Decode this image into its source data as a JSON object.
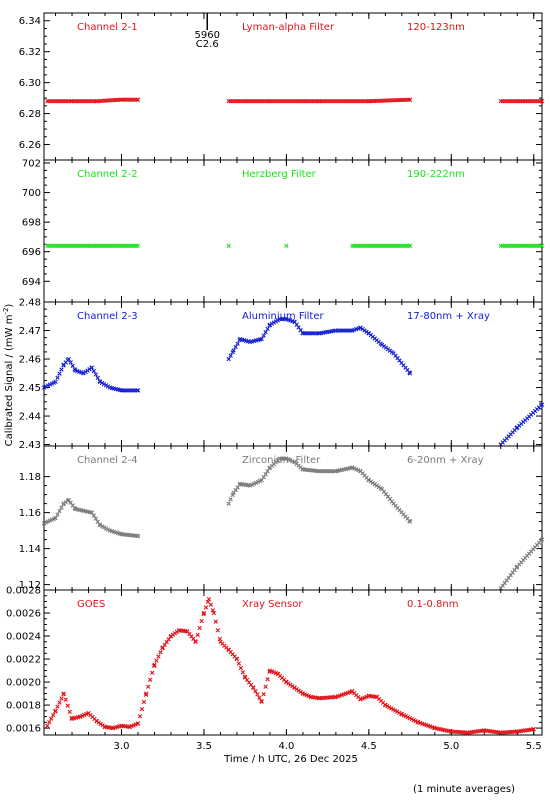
{
  "figure": {
    "ylabel": "Calibrated Signal / (mW m",
    "ylabel_sup": "-2",
    "ylabel_end": ")",
    "xlabel": "Time / h UTC, 26 Dec 2025",
    "footnote": "(1 minute averages)",
    "event_marker": {
      "x": 3.52,
      "labels": [
        "5960",
        "C2.6"
      ]
    }
  },
  "chart_data": [
    {
      "type": "scatter",
      "panel": "channel-2-1",
      "labels": [
        "Channel 2-1",
        "Lyman-alpha Filter",
        "120-123nm"
      ],
      "color": "#e0141a",
      "xlim": [
        2.53,
        5.55
      ],
      "ylim": [
        6.25,
        6.345
      ],
      "yticks": [
        6.26,
        6.28,
        6.3,
        6.32,
        6.34
      ],
      "ytick_labels": [
        "6.26",
        "6.28",
        "6.30",
        "6.32",
        "6.34"
      ],
      "x": [
        2.55,
        2.7,
        2.85,
        3.0,
        3.1,
        3.65,
        3.9,
        4.2,
        4.5,
        4.75,
        5.3,
        5.45,
        5.55
      ],
      "y": [
        6.288,
        6.288,
        6.288,
        6.289,
        6.289,
        6.288,
        6.288,
        6.288,
        6.288,
        6.289,
        6.288,
        6.288,
        6.288
      ]
    },
    {
      "type": "scatter",
      "panel": "channel-2-2",
      "labels": [
        "Channel 2-2",
        "Herzberg Filter",
        "190-222nm"
      ],
      "color": "#1ee01e",
      "xlim": [
        2.53,
        5.55
      ],
      "ylim": [
        692.6,
        702.2
      ],
      "yticks": [
        694,
        696,
        698,
        700,
        702
      ],
      "ytick_labels": [
        "694",
        "696",
        "698",
        "700",
        "702"
      ],
      "x": [
        2.55,
        2.8,
        3.1,
        3.65,
        4.0,
        4.4,
        4.75,
        5.3,
        5.45,
        5.55
      ],
      "y": [
        696.4,
        696.4,
        696.4,
        696.4,
        696.4,
        696.4,
        696.4,
        696.4,
        696.4,
        696.4
      ]
    },
    {
      "type": "scatter",
      "panel": "channel-2-3",
      "labels": [
        "Channel 2-3",
        "Aluminium Filter",
        "17-80nm + Xray"
      ],
      "color": "#1420d2",
      "xlim": [
        2.53,
        5.55
      ],
      "ylim": [
        2.4295,
        2.48
      ],
      "yticks": [
        2.43,
        2.44,
        2.45,
        2.46,
        2.47,
        2.48
      ],
      "ytick_labels": [
        "2.43",
        "2.44",
        "2.45",
        "2.46",
        "2.47",
        "2.48"
      ],
      "x": [
        2.53,
        2.6,
        2.65,
        2.68,
        2.72,
        2.77,
        2.82,
        2.87,
        2.93,
        3.0,
        3.1,
        3.65,
        3.68,
        3.72,
        3.78,
        3.85,
        3.9,
        3.96,
        4.0,
        4.05,
        4.1,
        4.2,
        4.3,
        4.4,
        4.45,
        4.5,
        4.58,
        4.65,
        4.75,
        5.3,
        5.4,
        5.55
      ],
      "y": [
        2.45,
        2.452,
        2.458,
        2.46,
        2.456,
        2.455,
        2.457,
        2.452,
        2.45,
        2.449,
        2.449,
        2.46,
        2.463,
        2.467,
        2.466,
        2.467,
        2.472,
        2.474,
        2.474,
        2.473,
        2.469,
        2.469,
        2.47,
        2.47,
        2.471,
        2.469,
        2.465,
        2.462,
        2.455,
        2.43,
        2.436,
        2.444
      ]
    },
    {
      "type": "scatter",
      "panel": "channel-2-4",
      "labels": [
        "Channel 2-4",
        "Zirconium Filter",
        "6-20nm + Xray"
      ],
      "color": "#7a7a7a",
      "xlim": [
        2.53,
        5.55
      ],
      "ylim": [
        1.117,
        1.197
      ],
      "yticks": [
        1.12,
        1.14,
        1.16,
        1.18
      ],
      "ytick_labels": [
        "1.12",
        "1.14",
        "1.16",
        "1.18"
      ],
      "x": [
        2.53,
        2.6,
        2.65,
        2.68,
        2.72,
        2.77,
        2.82,
        2.87,
        2.93,
        3.0,
        3.1,
        3.65,
        3.68,
        3.72,
        3.78,
        3.85,
        3.9,
        3.96,
        4.0,
        4.05,
        4.1,
        4.2,
        4.3,
        4.4,
        4.45,
        4.5,
        4.58,
        4.65,
        4.75,
        5.3,
        5.4,
        5.55
      ],
      "y": [
        1.154,
        1.157,
        1.165,
        1.167,
        1.162,
        1.161,
        1.16,
        1.153,
        1.15,
        1.148,
        1.147,
        1.165,
        1.171,
        1.176,
        1.175,
        1.178,
        1.185,
        1.19,
        1.19,
        1.188,
        1.184,
        1.183,
        1.183,
        1.185,
        1.183,
        1.178,
        1.173,
        1.165,
        1.155,
        1.118,
        1.13,
        1.145
      ]
    },
    {
      "type": "scatter",
      "panel": "goes",
      "labels": [
        "GOES",
        "Xray Sensor",
        "0.1-0.8nm"
      ],
      "color": "#e0141a",
      "xlim": [
        2.53,
        5.55
      ],
      "ylim": [
        0.00154,
        0.0028
      ],
      "yticks": [
        0.0016,
        0.0018,
        0.002,
        0.0022,
        0.0024,
        0.0026,
        0.0028
      ],
      "ytick_labels": [
        "0.0016",
        "0.0018",
        "0.0020",
        "0.0022",
        "0.0024",
        "0.0026",
        "0.0028"
      ],
      "x": [
        2.55,
        2.6,
        2.65,
        2.7,
        2.75,
        2.8,
        2.85,
        2.9,
        2.95,
        3.0,
        3.05,
        3.1,
        3.15,
        3.2,
        3.25,
        3.3,
        3.35,
        3.4,
        3.45,
        3.5,
        3.53,
        3.56,
        3.6,
        3.65,
        3.7,
        3.75,
        3.8,
        3.85,
        3.9,
        3.95,
        4.0,
        4.05,
        4.1,
        4.15,
        4.2,
        4.3,
        4.4,
        4.45,
        4.5,
        4.55,
        4.6,
        4.7,
        4.8,
        4.9,
        5.0,
        5.1,
        5.2,
        5.3,
        5.4,
        5.5
      ],
      "y": [
        0.00162,
        0.00175,
        0.0019,
        0.00168,
        0.0017,
        0.00173,
        0.00166,
        0.00161,
        0.0016,
        0.00162,
        0.00161,
        0.00164,
        0.0019,
        0.00215,
        0.0023,
        0.0024,
        0.00245,
        0.00244,
        0.00235,
        0.0026,
        0.00272,
        0.0026,
        0.00235,
        0.00228,
        0.0022,
        0.00204,
        0.00195,
        0.00183,
        0.0021,
        0.00207,
        0.002,
        0.00195,
        0.0019,
        0.00187,
        0.00186,
        0.00187,
        0.00192,
        0.00185,
        0.00188,
        0.00187,
        0.0018,
        0.00172,
        0.00165,
        0.0016,
        0.00157,
        0.00156,
        0.00158,
        0.00156,
        0.00157,
        0.00159
      ]
    }
  ],
  "xaxis": {
    "ticks": [
      3.0,
      3.5,
      4.0,
      4.5,
      5.0,
      5.5
    ],
    "tick_labels": [
      "3.0",
      "3.5",
      "4.0",
      "4.5",
      "5.0",
      "5.5"
    ]
  }
}
